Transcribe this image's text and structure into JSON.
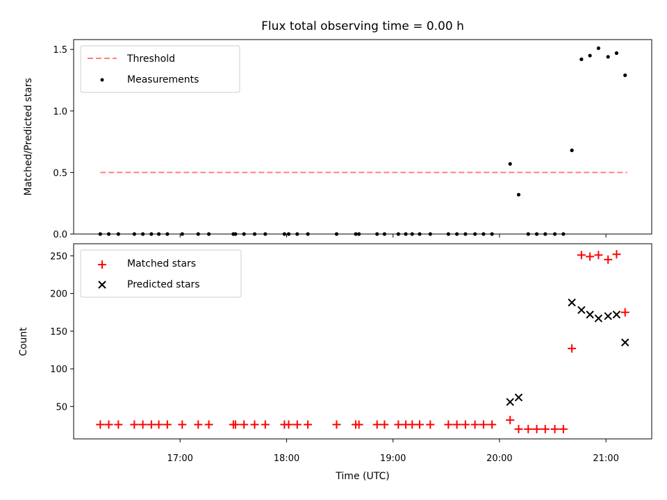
{
  "chart_data": [
    {
      "type": "scatter",
      "title": "Flux total observing time = 0.00 h",
      "xlabel": "",
      "ylabel": "Matched/Predicted stars",
      "ylim": [
        0,
        1.58
      ],
      "yticks": [
        0.0,
        0.5,
        1.0,
        1.5
      ],
      "ytick_labels": [
        "0.0",
        "0.5",
        "1.0",
        "1.5"
      ],
      "xlim_hours": [
        16.0,
        21.43
      ],
      "xticks_hours": [
        17,
        18,
        19,
        20,
        21
      ],
      "legend": {
        "position": "top-left",
        "entries": [
          "Threshold",
          "Measurements"
        ]
      },
      "threshold": {
        "name": "Threshold",
        "value": 0.5,
        "x_range_hours": [
          16.25,
          21.2
        ],
        "color": "#ff7f7f",
        "style": "dashed"
      },
      "series": [
        {
          "name": "Measurements",
          "marker": "dot",
          "color": "#000000",
          "points": [
            [
              16.25,
              0.0
            ],
            [
              16.33,
              0.0
            ],
            [
              16.42,
              0.0
            ],
            [
              16.57,
              0.0
            ],
            [
              16.65,
              0.0
            ],
            [
              16.73,
              0.0
            ],
            [
              16.8,
              0.0
            ],
            [
              16.88,
              0.0
            ],
            [
              17.02,
              0.0
            ],
            [
              17.17,
              0.0
            ],
            [
              17.27,
              0.0
            ],
            [
              17.5,
              0.0
            ],
            [
              17.52,
              0.0
            ],
            [
              17.6,
              0.0
            ],
            [
              17.7,
              0.0
            ],
            [
              17.8,
              0.0
            ],
            [
              17.98,
              0.0
            ],
            [
              18.02,
              0.0
            ],
            [
              18.1,
              0.0
            ],
            [
              18.2,
              0.0
            ],
            [
              18.47,
              0.0
            ],
            [
              18.65,
              0.0
            ],
            [
              18.68,
              0.0
            ],
            [
              18.85,
              0.0
            ],
            [
              18.92,
              0.0
            ],
            [
              19.05,
              0.0
            ],
            [
              19.12,
              0.0
            ],
            [
              19.18,
              0.0
            ],
            [
              19.25,
              0.0
            ],
            [
              19.35,
              0.0
            ],
            [
              19.52,
              0.0
            ],
            [
              19.6,
              0.0
            ],
            [
              19.68,
              0.0
            ],
            [
              19.77,
              0.0
            ],
            [
              19.85,
              0.0
            ],
            [
              19.93,
              0.0
            ],
            [
              20.1,
              0.57
            ],
            [
              20.18,
              0.32
            ],
            [
              20.27,
              0.0
            ],
            [
              20.35,
              0.0
            ],
            [
              20.43,
              0.0
            ],
            [
              20.52,
              0.0
            ],
            [
              20.6,
              0.0
            ],
            [
              20.68,
              0.68
            ],
            [
              20.77,
              1.42
            ],
            [
              20.85,
              1.45
            ],
            [
              20.93,
              1.51
            ],
            [
              21.02,
              1.44
            ],
            [
              21.1,
              1.47
            ],
            [
              21.18,
              1.29
            ]
          ]
        }
      ]
    },
    {
      "type": "scatter",
      "title": "",
      "xlabel": "Time (UTC)",
      "ylabel": "Count",
      "ylim": [
        7,
        266
      ],
      "yticks": [
        50,
        100,
        150,
        200,
        250
      ],
      "ytick_labels": [
        "50",
        "100",
        "150",
        "200",
        "250"
      ],
      "xlim_hours": [
        16.0,
        21.43
      ],
      "xticks_hours": [
        17,
        18,
        19,
        20,
        21
      ],
      "xtick_labels": [
        "17:00",
        "18:00",
        "19:00",
        "20:00",
        "21:00"
      ],
      "legend": {
        "position": "top-left",
        "entries": [
          "Matched stars",
          "Predicted stars"
        ]
      },
      "series": [
        {
          "name": "Matched stars",
          "marker": "plus",
          "color": "#ff0000",
          "points": [
            [
              16.25,
              26
            ],
            [
              16.33,
              26
            ],
            [
              16.42,
              26
            ],
            [
              16.57,
              26
            ],
            [
              16.65,
              26
            ],
            [
              16.73,
              26
            ],
            [
              16.8,
              26
            ],
            [
              16.88,
              26
            ],
            [
              17.02,
              26
            ],
            [
              17.17,
              26
            ],
            [
              17.27,
              26
            ],
            [
              17.5,
              26
            ],
            [
              17.52,
              26
            ],
            [
              17.6,
              26
            ],
            [
              17.7,
              26
            ],
            [
              17.8,
              26
            ],
            [
              17.98,
              26
            ],
            [
              18.02,
              26
            ],
            [
              18.1,
              26
            ],
            [
              18.2,
              26
            ],
            [
              18.47,
              26
            ],
            [
              18.65,
              26
            ],
            [
              18.68,
              26
            ],
            [
              18.85,
              26
            ],
            [
              18.92,
              26
            ],
            [
              19.05,
              26
            ],
            [
              19.12,
              26
            ],
            [
              19.18,
              26
            ],
            [
              19.25,
              26
            ],
            [
              19.35,
              26
            ],
            [
              19.52,
              26
            ],
            [
              19.6,
              26
            ],
            [
              19.68,
              26
            ],
            [
              19.77,
              26
            ],
            [
              19.85,
              26
            ],
            [
              19.93,
              26
            ],
            [
              20.1,
              32
            ],
            [
              20.18,
              20
            ],
            [
              20.27,
              20
            ],
            [
              20.35,
              20
            ],
            [
              20.43,
              20
            ],
            [
              20.52,
              20
            ],
            [
              20.6,
              20
            ],
            [
              20.68,
              127
            ],
            [
              20.77,
              251
            ],
            [
              20.85,
              249
            ],
            [
              20.93,
              251
            ],
            [
              21.02,
              245
            ],
            [
              21.1,
              252
            ],
            [
              21.18,
              175
            ]
          ]
        },
        {
          "name": "Predicted stars",
          "marker": "x",
          "color": "#000000",
          "points": [
            [
              20.1,
              56
            ],
            [
              20.18,
              62
            ],
            [
              20.68,
              188
            ],
            [
              20.77,
              178
            ],
            [
              20.85,
              172
            ],
            [
              20.93,
              167
            ],
            [
              21.02,
              170
            ],
            [
              21.1,
              172
            ],
            [
              21.18,
              135
            ]
          ]
        }
      ]
    }
  ]
}
